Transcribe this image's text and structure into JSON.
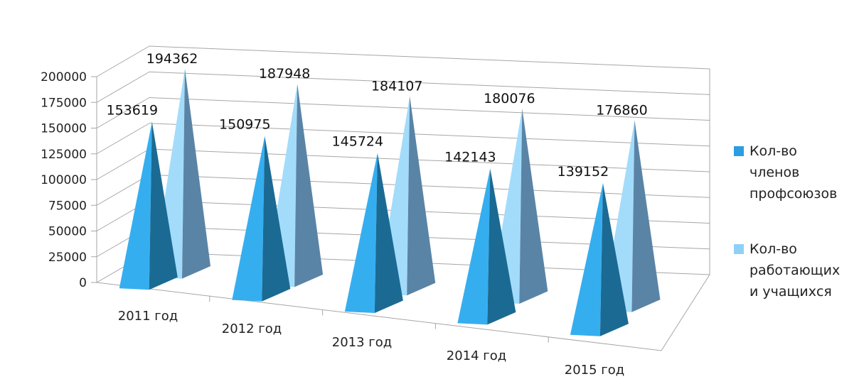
{
  "chart_data": {
    "type": "bar",
    "shape": "3d-pyramid",
    "categories": [
      "2011 год",
      "2012 год",
      "2013 год",
      "2014 год",
      "2015 год"
    ],
    "series": [
      {
        "name": "Кол-во членов профсоюзов",
        "values": [
          153619,
          150975,
          145724,
          142143,
          139152
        ]
      },
      {
        "name": "Кол-во работающих и учащихся",
        "values": [
          194362,
          187948,
          184107,
          180076,
          176860
        ]
      }
    ],
    "ylim": [
      0,
      200000
    ],
    "yticks": [
      0,
      25000,
      50000,
      75000,
      100000,
      125000,
      150000,
      175000,
      200000
    ],
    "grid": true,
    "legend": "right",
    "colors": {
      "series1_front": "#35aef0",
      "series1_side": "#1b6a93",
      "series2_front": "#a3dcfb",
      "series2_side": "#5a84a6",
      "grid": "#a6a6a6"
    }
  },
  "legend": {
    "items": [
      {
        "lines": [
          "Кол-во",
          "членов",
          "профсоюзов"
        ],
        "color": "#2a9ee0"
      },
      {
        "lines": [
          "Кол-во",
          "работающих",
          "и учащихся"
        ],
        "color": "#8fd0f8"
      }
    ]
  }
}
